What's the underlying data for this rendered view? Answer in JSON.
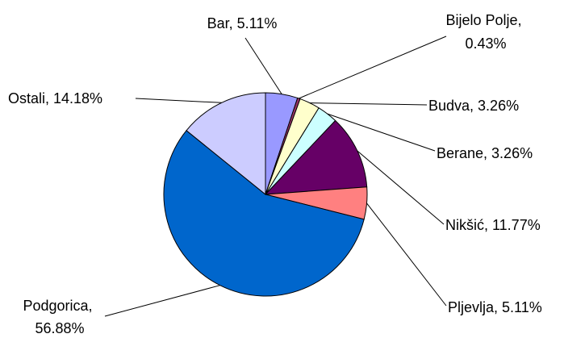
{
  "chart_data": {
    "type": "pie",
    "start": "12 o'clock",
    "direction": "clockwise",
    "legend": "none",
    "slices": [
      {
        "name": "Bar",
        "value": 5.11,
        "label": "Bar, 5.11%",
        "color": "#9999ff"
      },
      {
        "name": "Bijelo Polje",
        "value": 0.43,
        "label_lines": [
          "Bijelo Polje,",
          "0.43%"
        ],
        "color": "#993366"
      },
      {
        "name": "Budva",
        "value": 3.26,
        "label": "Budva, 3.26%",
        "color": "#ffffcc"
      },
      {
        "name": "Berane",
        "value": 3.26,
        "label": "Berane, 3.26%",
        "color": "#ccffff"
      },
      {
        "name": "Nikšić",
        "value": 11.77,
        "label": "Nikšić, 11.77%",
        "color": "#660066"
      },
      {
        "name": "Pljevlja",
        "value": 5.11,
        "label": "Pljevlja, 5.11%",
        "color": "#ff8080"
      },
      {
        "name": "Podgorica",
        "value": 56.88,
        "label_lines": [
          "Podgorica,",
          "56.88%"
        ],
        "color": "#0066cc"
      },
      {
        "name": "Ostali",
        "value": 14.18,
        "label": "Ostali, 14.18%",
        "color": "#ccccff"
      }
    ]
  }
}
